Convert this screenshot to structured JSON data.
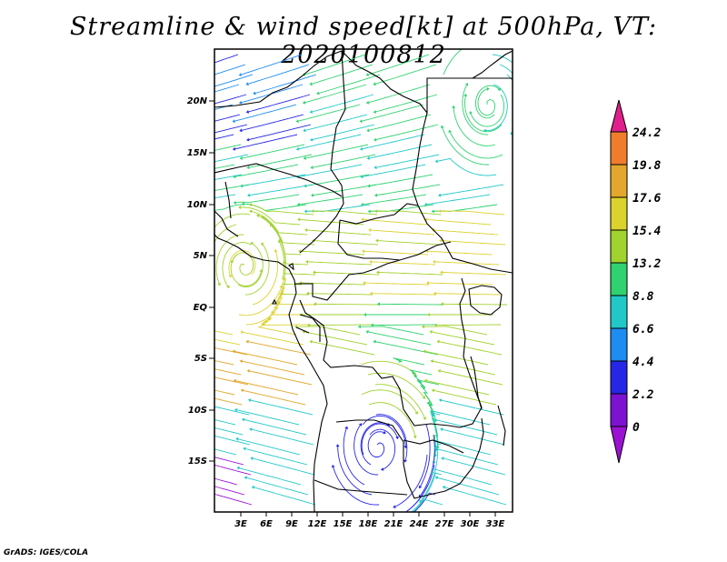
{
  "title": "Streamline & wind speed[kt] at 500hPa, VT: 2020100812",
  "credit": "GrADS: IGES/COLA",
  "map": {
    "lat_labels": [
      "20N",
      "15N",
      "10N",
      "5N",
      "EQ",
      "5S",
      "10S",
      "15S"
    ],
    "lon_labels": [
      "3E",
      "6E",
      "9E",
      "12E",
      "15E",
      "18E",
      "21E",
      "24E",
      "27E",
      "30E",
      "33E"
    ]
  },
  "colorbar": {
    "labels": [
      "24.2",
      "19.8",
      "17.6",
      "15.4",
      "13.2",
      "8.8",
      "6.6",
      "4.4",
      "2.2",
      "0"
    ],
    "colors": [
      "#e0208c",
      "#f07d2c",
      "#e2a72c",
      "#dcd22e",
      "#a1d22d",
      "#2fd26f",
      "#22c8c8",
      "#1e8cf0",
      "#2626e6",
      "#7c12d2",
      "#9b12d2"
    ]
  },
  "streamlines": {
    "colors": {
      "0-2.2": "#9b12d2",
      "2.2-4.4": "#2626e6",
      "4.4-6.6": "#1e8cf0",
      "6.6-8.8": "#22c8c8",
      "8.8-13.2": "#2fd26f",
      "13.2-15.4": "#a1d22d",
      "15.4-17.6": "#dcd22e",
      "17.6-19.8": "#e2a72c",
      "19.8-24.2": "#f07d2c"
    }
  }
}
